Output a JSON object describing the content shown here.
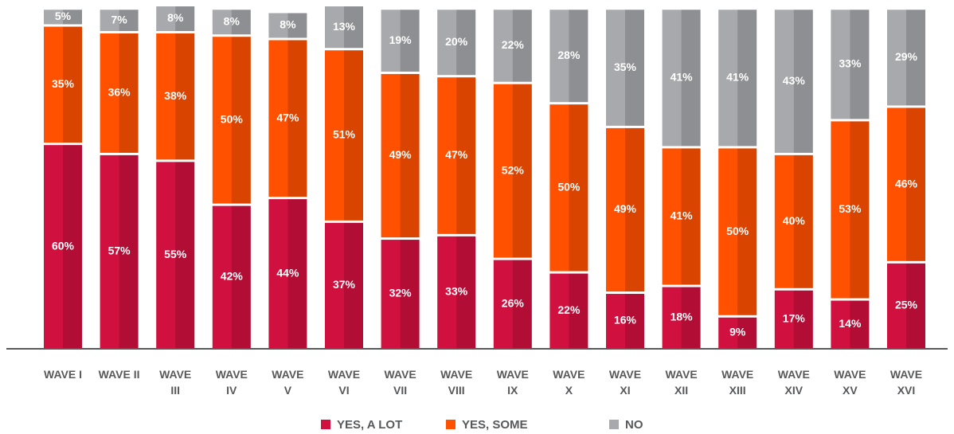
{
  "chart_data": {
    "type": "stacked_bar",
    "categories": [
      "WAVE I",
      "WAVE II",
      "WAVE III",
      "WAVE IV",
      "WAVE V",
      "WAVE VI",
      "WAVE VII",
      "WAVE VIII",
      "WAVE IX",
      "WAVE X",
      "WAVE XI",
      "WAVE XII",
      "WAVE XIII",
      "WAVE XIV",
      "WAVE XV",
      "WAVE XVI"
    ],
    "series": [
      {
        "name": "YES, A LOT",
        "color": "#d0103f",
        "values": [
          60,
          57,
          55,
          42,
          44,
          37,
          32,
          33,
          26,
          22,
          16,
          18,
          9,
          17,
          14,
          25
        ],
        "value_labels": [
          "60%",
          "57%",
          "55%",
          "42%",
          "44%",
          "37%",
          "32%",
          "33%",
          "26%",
          "22%",
          "16%",
          "18%",
          "9%",
          "17%",
          "14%",
          "25%"
        ]
      },
      {
        "name": "YES, SOME",
        "color": "#ff5100",
        "values": [
          35,
          36,
          38,
          50,
          47,
          51,
          49,
          47,
          52,
          50,
          49,
          41,
          50,
          40,
          53,
          46
        ],
        "value_labels": [
          "35%",
          "36%",
          "38%",
          "50%",
          "47%",
          "51%",
          "49%",
          "47%",
          "52%",
          "50%",
          "49%",
          "41%",
          "50%",
          "40%",
          "53%",
          "46%"
        ]
      },
      {
        "name": "NO",
        "color": "#a7a9ac",
        "values": [
          5,
          7,
          8,
          8,
          8,
          13,
          19,
          20,
          22,
          28,
          35,
          41,
          41,
          43,
          33,
          29
        ],
        "value_labels": [
          "5%",
          "7%",
          "8%",
          "8%",
          "8%",
          "13%",
          "19%",
          "20%",
          "22%",
          "28%",
          "35%",
          "41%",
          "41%",
          "43%",
          "33%",
          "29%"
        ]
      }
    ],
    "ylim": [
      0,
      101
    ],
    "legend": "bottom"
  }
}
